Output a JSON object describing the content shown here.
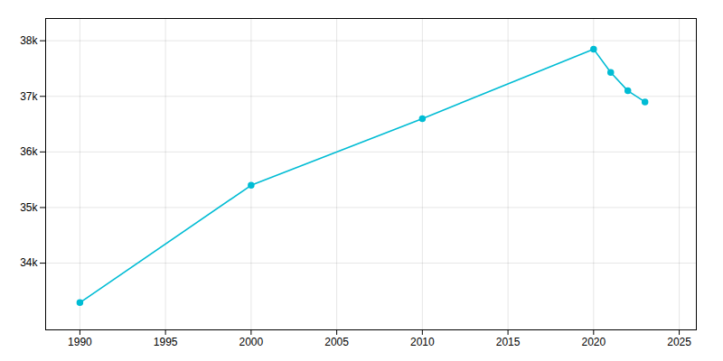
{
  "chart_data": {
    "type": "line",
    "x": [
      1990,
      2000,
      2010,
      2020,
      2021,
      2022,
      2023
    ],
    "values": [
      33290,
      35400,
      36600,
      37850,
      37430,
      37100,
      36900
    ],
    "color": "#00BCD4",
    "marker": "circle",
    "xlim": [
      1988,
      2026
    ],
    "xticks": [
      1990,
      1995,
      2000,
      2005,
      2010,
      2015,
      2020,
      2025
    ],
    "ylim": [
      32800,
      38400
    ],
    "yticks": [
      {
        "value": 34000,
        "label": "34k"
      },
      {
        "value": 35000,
        "label": "35k"
      },
      {
        "value": 36000,
        "label": "36k"
      },
      {
        "value": 37000,
        "label": "37k"
      },
      {
        "value": 38000,
        "label": "38k"
      }
    ],
    "grid": true
  }
}
